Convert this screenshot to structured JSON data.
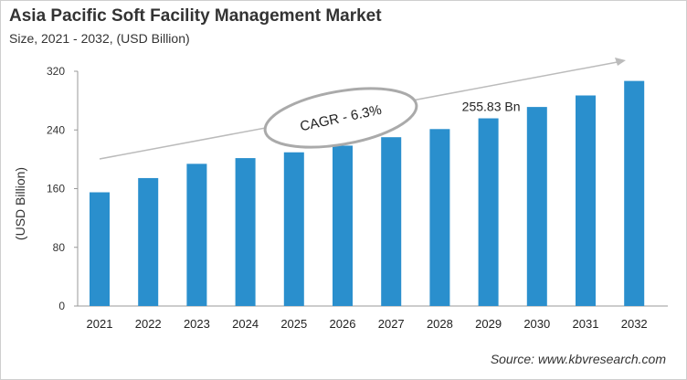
{
  "chart_data": {
    "type": "bar",
    "title": "Asia Pacific Soft Facility Management Market",
    "subtitle": "Size, 2021 - 2032, (USD Billion)",
    "xlabel": "",
    "ylabel": "(USD Billion)",
    "categories": [
      "2021",
      "2022",
      "2023",
      "2024",
      "2025",
      "2026",
      "2027",
      "2028",
      "2029",
      "2030",
      "2031",
      "2032"
    ],
    "values": [
      155.0,
      174.4,
      193.8,
      201.6,
      209.5,
      218.6,
      230.1,
      241.2,
      255.83,
      271.3,
      287.0,
      306.8
    ],
    "ylim": [
      0,
      320
    ],
    "yticks": [
      0,
      80,
      160,
      240,
      320
    ],
    "grid": false,
    "bar_color": "#2a8fcd",
    "annotations": {
      "cagr": "CAGR - 6.3%",
      "data_label": "255.83 Bn",
      "data_label_category": "2029"
    },
    "source": "Source: www.kbvresearch.com"
  }
}
